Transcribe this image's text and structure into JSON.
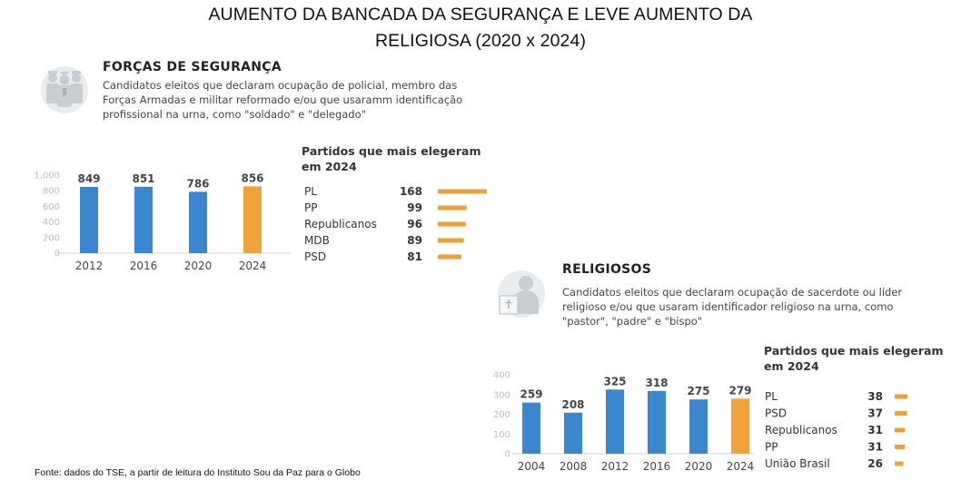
{
  "title_line1": "AUMENTO DA BANCADA DA SEGURANÇA E LEVE AUMENTO DA",
  "title_line2": "RELIGIOSA (2020 x 2024)",
  "source": "Fonte: dados do TSE, a partir de leitura do Instituto Sou da Paz para o Globo",
  "colors": {
    "bar": "#3a87cf",
    "highlight": "#f0a23c",
    "party_bar": "#e8a13d",
    "axis_text": "#bbbbbb"
  },
  "security": {
    "title": "FORÇAS DE SEGURANÇA",
    "description_lines": [
      "Candidatos eleitos que declaram ocupação de policial, membro das",
      "Forças Armadas e militar reformado e/ou que usaramm identificação",
      "profissional na urna, como \"soldado\" e \"delegado\""
    ],
    "icon": "police-officers-icon",
    "parties_title_lines": [
      "Partidos que mais elegeram",
      "em 2024"
    ]
  },
  "religious": {
    "title": "RELIGIOSOS",
    "description_lines": [
      "Candidatos eleitos que declaram ocupação de sacerdote ou líder",
      "religioso e/ou que usaram identificador religioso na urna, como",
      "\"pastor\", \"padre\" e \"bispo\""
    ],
    "icon": "religious-leader-icon",
    "parties_title_lines": [
      "Partidos que mais elegeram",
      "em 2024"
    ]
  },
  "chart_data": [
    {
      "id": "security-bars",
      "type": "bar",
      "categories": [
        "2012",
        "2016",
        "2020",
        "2024"
      ],
      "values": [
        849,
        851,
        786,
        856
      ],
      "value_labels": [
        "849",
        "851",
        "786",
        "856"
      ],
      "ylim": [
        0,
        1000
      ],
      "yticks": [
        0,
        200,
        400,
        600,
        800,
        1000
      ],
      "ytick_labels": [
        "0",
        "200",
        "400",
        "600",
        "800",
        "1,000"
      ],
      "highlight_index": 3,
      "grid": false
    },
    {
      "id": "security-parties",
      "type": "bar",
      "orientation": "horizontal",
      "categories": [
        "PL",
        "PP",
        "Republicanos",
        "MDB",
        "PSD"
      ],
      "values": [
        168,
        99,
        96,
        89,
        81
      ],
      "value_labels": [
        "168",
        "99",
        "96",
        "89",
        "81"
      ]
    },
    {
      "id": "religious-bars",
      "type": "bar",
      "categories": [
        "2004",
        "2008",
        "2012",
        "2016",
        "2020",
        "2024"
      ],
      "values": [
        259,
        208,
        325,
        318,
        275,
        279
      ],
      "value_labels": [
        "259",
        "208",
        "325",
        "318",
        "275",
        "279"
      ],
      "ylim": [
        0,
        400
      ],
      "yticks": [
        0,
        100,
        200,
        300,
        400
      ],
      "ytick_labels": [
        "0",
        "100",
        "200",
        "300",
        "400"
      ],
      "highlight_index": 5,
      "grid": false
    },
    {
      "id": "religious-parties",
      "type": "bar",
      "orientation": "horizontal",
      "categories": [
        "PL",
        "PSD",
        "Republicanos",
        "PP",
        "União Brasil"
      ],
      "values": [
        38,
        37,
        31,
        31,
        26
      ],
      "value_labels": [
        "38",
        "37",
        "31",
        "31",
        "26"
      ]
    }
  ]
}
